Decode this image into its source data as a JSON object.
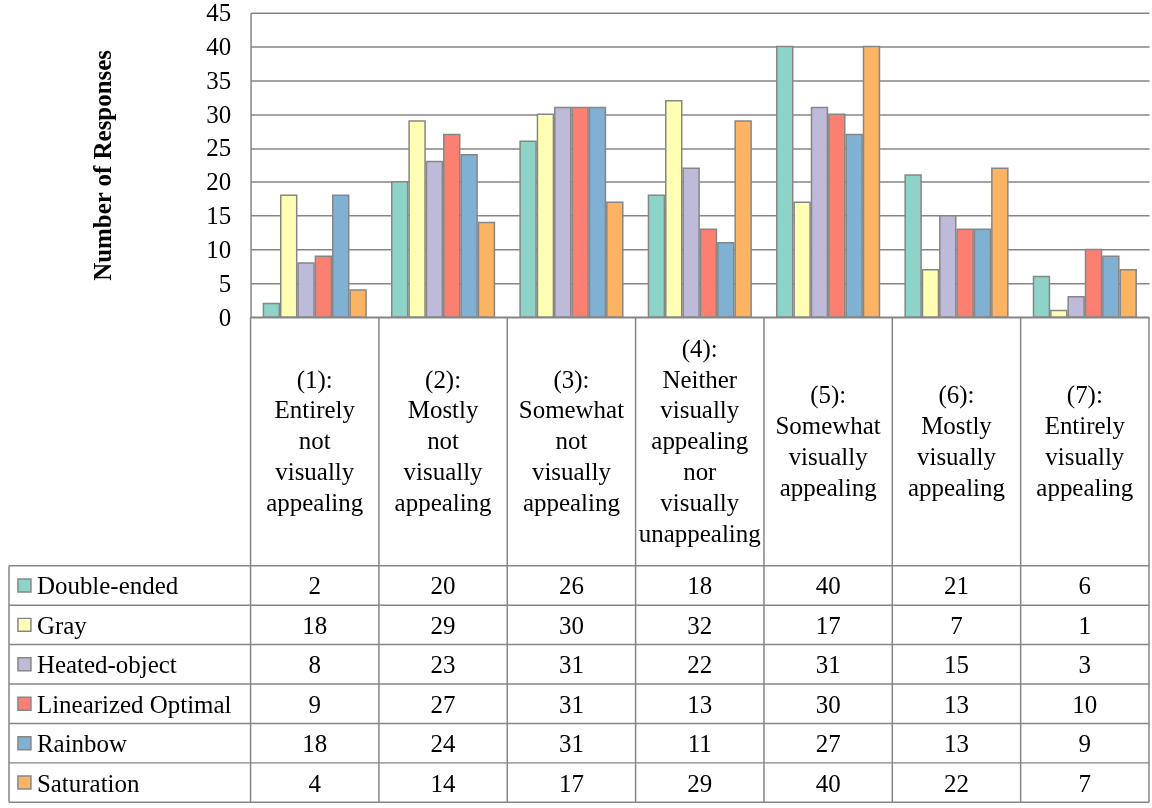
{
  "chart_data": {
    "type": "bar",
    "ylabel": "Number of Responses",
    "categories": [
      "(1): Entirely not visually appealing",
      "(2): Mostly not visually appealing",
      "(3): Somewhat not visually appealing",
      "(4): Neither visually appealing nor visually unappealing",
      "(5): Somewhat visually appealing",
      "(6): Mostly visually appealing",
      "(7): Entirely visually appealing"
    ],
    "series": [
      {
        "name": "Double-ended",
        "color": "#8dd3c7",
        "values": [
          2,
          20,
          26,
          18,
          40,
          21,
          6
        ]
      },
      {
        "name": "Gray",
        "color": "#ffffb3",
        "values": [
          18,
          29,
          30,
          32,
          17,
          7,
          1
        ]
      },
      {
        "name": "Heated-object",
        "color": "#bebada",
        "values": [
          8,
          23,
          31,
          22,
          31,
          15,
          3
        ]
      },
      {
        "name": "Linearized Optimal",
        "color": "#fb8072",
        "values": [
          9,
          27,
          31,
          13,
          30,
          13,
          10
        ]
      },
      {
        "name": "Rainbow",
        "color": "#80b1d3",
        "values": [
          18,
          24,
          31,
          11,
          27,
          13,
          9
        ]
      },
      {
        "name": "Saturation",
        "color": "#fdb462",
        "values": [
          4,
          14,
          17,
          29,
          40,
          22,
          7
        ]
      }
    ],
    "ylim": [
      0,
      45
    ],
    "yticks": [
      0,
      5,
      10,
      15,
      20,
      25,
      30,
      35,
      40,
      45
    ],
    "grid": "y",
    "legend": "bottom left",
    "data_labels": true
  }
}
